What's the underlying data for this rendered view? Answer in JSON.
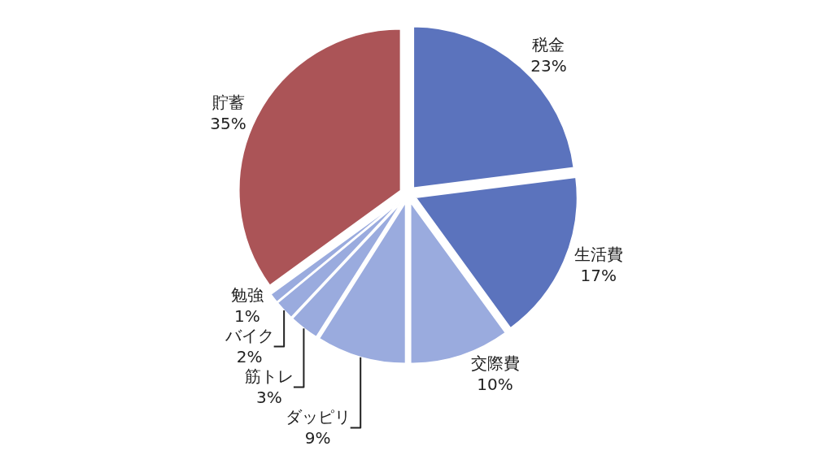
{
  "chart_data": {
    "type": "pie",
    "categories": [
      "税金",
      "生活費",
      "交際費",
      "ダッピリ",
      "筋トレ",
      "バイク",
      "勉強",
      "貯蓄"
    ],
    "values": [
      23,
      17,
      10,
      9,
      3,
      2,
      1,
      35
    ],
    "value_labels": [
      "23%",
      "17%",
      "10%",
      "9%",
      "3%",
      "2%",
      "1%",
      "35%"
    ],
    "colors": [
      "#5b73bd",
      "#5b73bd",
      "#9aabde",
      "#9aabde",
      "#9aabde",
      "#9aabde",
      "#9aabde",
      "#ab5457"
    ],
    "legend": false
  }
}
